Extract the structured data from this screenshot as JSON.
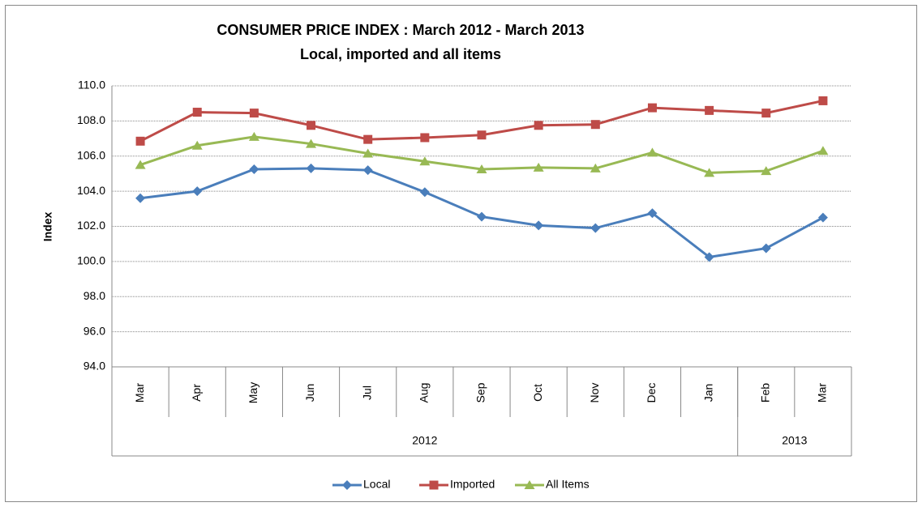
{
  "chart_data": {
    "type": "line",
    "title": "CONSUMER PRICE INDEX : March 2012 - March 2013",
    "subtitle": "Local, imported and all items",
    "y_label": "Index",
    "categories": [
      "Mar",
      "Apr",
      "May",
      "Jun",
      "Jul",
      "Aug",
      "Sep",
      "Oct",
      "Nov",
      "Dec",
      "Jan",
      "Feb",
      "Mar"
    ],
    "groups": [
      {
        "label": "2012",
        "count": 11
      },
      {
        "label": "2013",
        "count": 2
      }
    ],
    "series": [
      {
        "name": "Local",
        "color": "#4a7ebb",
        "marker": "diamond",
        "values": [
          103.6,
          104.0,
          105.25,
          105.3,
          105.2,
          103.95,
          102.55,
          102.05,
          101.9,
          102.75,
          100.25,
          100.75,
          102.5
        ]
      },
      {
        "name": "Imported",
        "color": "#be4b48",
        "marker": "square",
        "values": [
          106.85,
          108.5,
          108.45,
          107.75,
          106.95,
          107.05,
          107.2,
          107.75,
          107.8,
          108.75,
          108.6,
          108.45,
          109.15
        ]
      },
      {
        "name": "All Items",
        "color": "#98b954",
        "marker": "triangle",
        "values": [
          105.5,
          106.6,
          107.1,
          106.7,
          106.15,
          105.7,
          105.25,
          105.35,
          105.3,
          106.2,
          105.05,
          105.15,
          106.3
        ]
      }
    ],
    "ylim": [
      94,
      110
    ],
    "yticks": [
      {
        "value": 94,
        "label": "94.0"
      },
      {
        "value": 96,
        "label": "96.0"
      },
      {
        "value": 98,
        "label": "98.0"
      },
      {
        "value": 100,
        "label": "100.0"
      },
      {
        "value": 102,
        "label": "102.0"
      },
      {
        "value": 104,
        "label": "104.0"
      },
      {
        "value": 106,
        "label": "106.0"
      },
      {
        "value": 108,
        "label": "108.0"
      },
      {
        "value": 110,
        "label": "110.0"
      }
    ],
    "grid": true,
    "legend": "bottom"
  }
}
